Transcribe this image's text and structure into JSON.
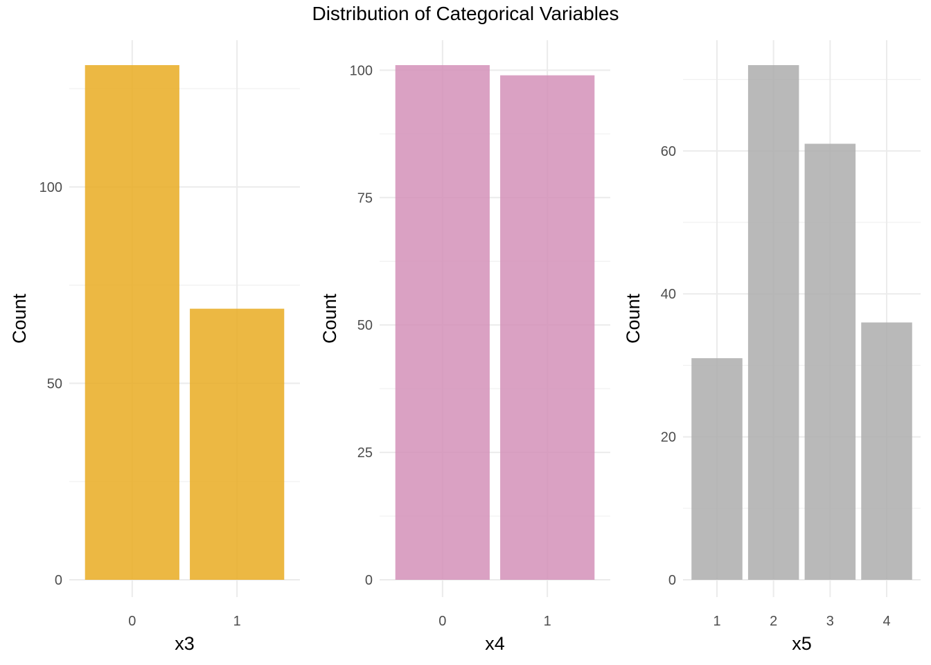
{
  "title": "Distribution of Categorical Variables",
  "chart_data": [
    {
      "type": "bar",
      "categories": [
        "0",
        "1"
      ],
      "values": [
        131,
        69
      ],
      "xlabel": "x3",
      "ylabel": "Count",
      "ylim": [
        0,
        131
      ],
      "yticks": [
        0,
        50,
        100
      ],
      "yticks_minor": [
        25,
        75,
        125
      ],
      "color": "#E9AB22",
      "grid": true
    },
    {
      "type": "bar",
      "categories": [
        "0",
        "1"
      ],
      "values": [
        101,
        99
      ],
      "xlabel": "x4",
      "ylabel": "Count",
      "ylim": [
        0,
        101
      ],
      "yticks": [
        0,
        25,
        50,
        75,
        100
      ],
      "yticks_minor": [
        12.5,
        37.5,
        62.5,
        87.5
      ],
      "color": "#D391B8",
      "grid": true
    },
    {
      "type": "bar",
      "categories": [
        "1",
        "2",
        "3",
        "4"
      ],
      "values": [
        31,
        72,
        61,
        36
      ],
      "xlabel": "x5",
      "ylabel": "Count",
      "ylim": [
        0,
        72
      ],
      "yticks": [
        0,
        20,
        40,
        60
      ],
      "yticks_minor": [
        10,
        30,
        50,
        70
      ],
      "color": "#ADADAD",
      "grid": true
    }
  ]
}
